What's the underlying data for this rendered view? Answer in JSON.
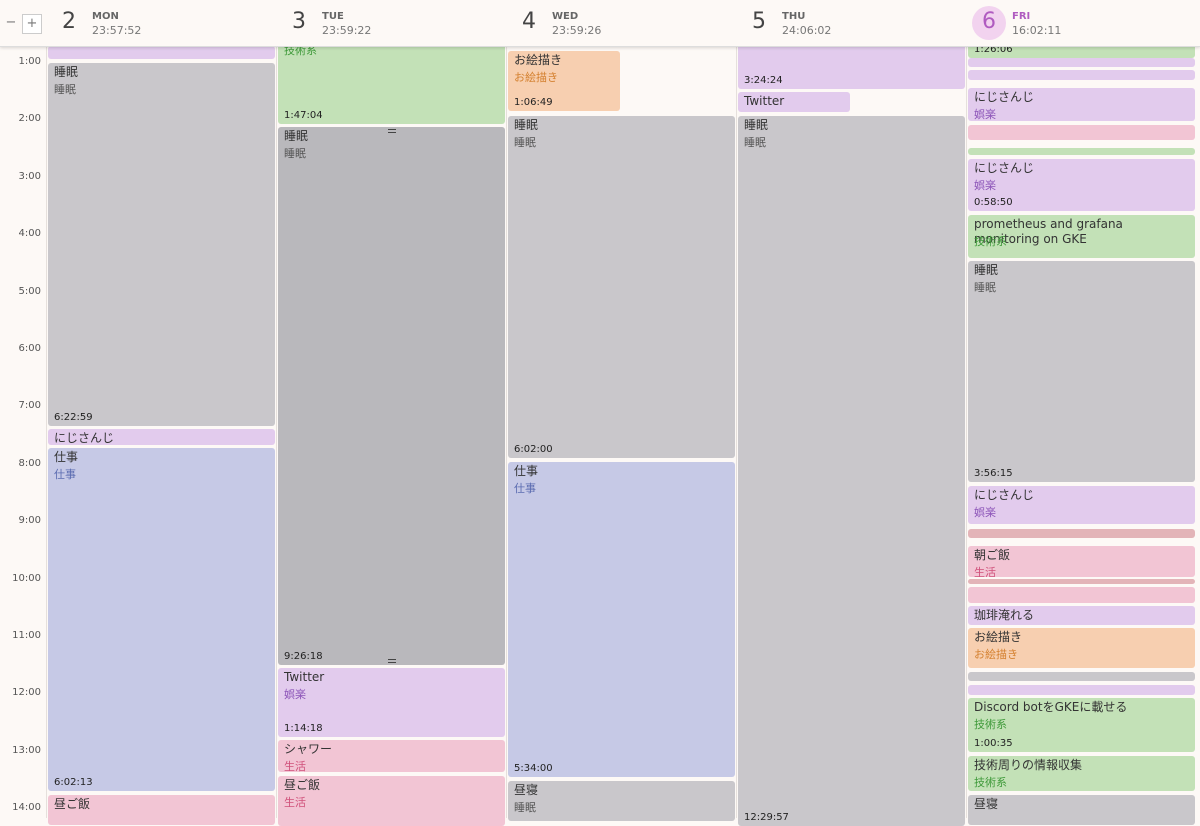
{
  "toolbar": {
    "zoom_out": "−",
    "zoom_in": "+"
  },
  "hours": [
    "1:00",
    "2:00",
    "3:00",
    "4:00",
    "5:00",
    "6:00",
    "7:00",
    "8:00",
    "9:00",
    "10:00",
    "11:00",
    "12:00",
    "13:00",
    "14:00"
  ],
  "days": [
    {
      "date": "2",
      "weekday": "MON",
      "time": "23:57:52",
      "today": false,
      "events": [
        {
          "color": "#e2cbed"
        },
        {
          "title": "睡眠",
          "category": "睡眠",
          "duration": "6:22:59",
          "color": "#c9c7cb",
          "category_color": "#555555"
        },
        {
          "title": "にじさんじ",
          "color": "#e2cbed"
        },
        {
          "title": "仕事",
          "category": "仕事",
          "duration": "6:02:13",
          "color": "#c6c9e6",
          "category_color": "#5a6bb0"
        },
        {
          "title": "昼ご飯",
          "color": "#f2c5d4"
        }
      ]
    },
    {
      "date": "3",
      "weekday": "TUE",
      "time": "23:59:22",
      "today": false,
      "events": [
        {
          "category": "技術系",
          "duration": "1:47:04",
          "color": "#c3e1b7",
          "category_color": "#3f9a3a"
        },
        {
          "title": "睡眠",
          "category": "睡眠",
          "duration": "9:26:18",
          "color": "#b9b8bc",
          "category_color": "#555555"
        },
        {
          "title": "Twitter",
          "category": "娯楽",
          "duration": "1:14:18",
          "color": "#e2cbed",
          "category_color": "#8c54b8"
        },
        {
          "title": "シャワー",
          "category": "生活",
          "color": "#f2c5d4",
          "category_color": "#d0507a"
        },
        {
          "title": "昼ご飯",
          "category": "生活",
          "color": "#f2c5d4",
          "category_color": "#d0507a"
        }
      ]
    },
    {
      "date": "4",
      "weekday": "WED",
      "time": "23:59:26",
      "today": false,
      "events": [
        {
          "title": "お絵描き",
          "category": "お絵描き",
          "duration": "1:06:49",
          "color": "#f7cfb0",
          "category_color": "#d4802f"
        },
        {
          "title": "睡眠",
          "category": "睡眠",
          "duration": "6:02:00",
          "color": "#c9c7cb",
          "category_color": "#555555"
        },
        {
          "title": "仕事",
          "category": "仕事",
          "duration": "5:34:00",
          "color": "#c6c9e6",
          "category_color": "#5a6bb0"
        },
        {
          "title": "昼寝",
          "category": "睡眠",
          "color": "#c9c7cb",
          "category_color": "#555555"
        }
      ]
    },
    {
      "date": "5",
      "weekday": "THU",
      "time": "24:06:02",
      "today": false,
      "events": [
        {
          "duration": "3:24:24",
          "color": "#e2cbed"
        },
        {
          "title": "Twitter",
          "color": "#e2cbed"
        },
        {
          "title": "睡眠",
          "category": "睡眠",
          "duration": "12:29:57",
          "color": "#c9c7cb",
          "category_color": "#555555"
        }
      ]
    },
    {
      "date": "6",
      "weekday": "FRI",
      "time": "16:02:11",
      "today": true,
      "events": [
        {
          "duration": "1:26:06",
          "color": "#c3e1b7"
        },
        {
          "color": "#e2cbed"
        },
        {
          "color": "#e2cbed"
        },
        {
          "title": "にじさんじ",
          "category": "娯楽",
          "color": "#e2cbed",
          "category_color": "#8c54b8"
        },
        {
          "color": "#f2c5d4"
        },
        {
          "color": "#c3e1b7"
        },
        {
          "title": "にじさんじ",
          "category": "娯楽",
          "duration": "0:58:50",
          "color": "#e2cbed",
          "category_color": "#8c54b8"
        },
        {
          "title": "prometheus and grafana monitoring on GKE",
          "category": "技術系",
          "color": "#c3e1b7",
          "category_color": "#3f9a3a"
        },
        {
          "title": "睡眠",
          "category": "睡眠",
          "duration": "3:56:15",
          "color": "#c9c7cb",
          "category_color": "#555555"
        },
        {
          "title": "にじさんじ",
          "category": "娯楽",
          "color": "#e2cbed",
          "category_color": "#8c54b8"
        },
        {
          "color": "#e3b4b8"
        },
        {
          "title": "朝ご飯",
          "category": "生活",
          "color": "#f2c5d4",
          "category_color": "#d0507a"
        },
        {
          "color": "#e3b4b8"
        },
        {
          "color": "#f2c5d4"
        },
        {
          "title": "珈琲淹れる",
          "color": "#e2cbed"
        },
        {
          "title": "お絵描き",
          "category": "お絵描き",
          "color": "#f7cfb0",
          "category_color": "#d4802f"
        },
        {
          "color": "#c9c7cb"
        },
        {
          "color": "#e2cbed"
        },
        {
          "title": "Discord botをGKEに載せる",
          "category": "技術系",
          "duration": "1:00:35",
          "color": "#c3e1b7",
          "category_color": "#3f9a3a"
        },
        {
          "title": "技術周りの情報収集",
          "category": "技術系",
          "color": "#c3e1b7",
          "category_color": "#3f9a3a"
        },
        {
          "title": "昼寝",
          "color": "#c9c7cb"
        }
      ]
    }
  ]
}
